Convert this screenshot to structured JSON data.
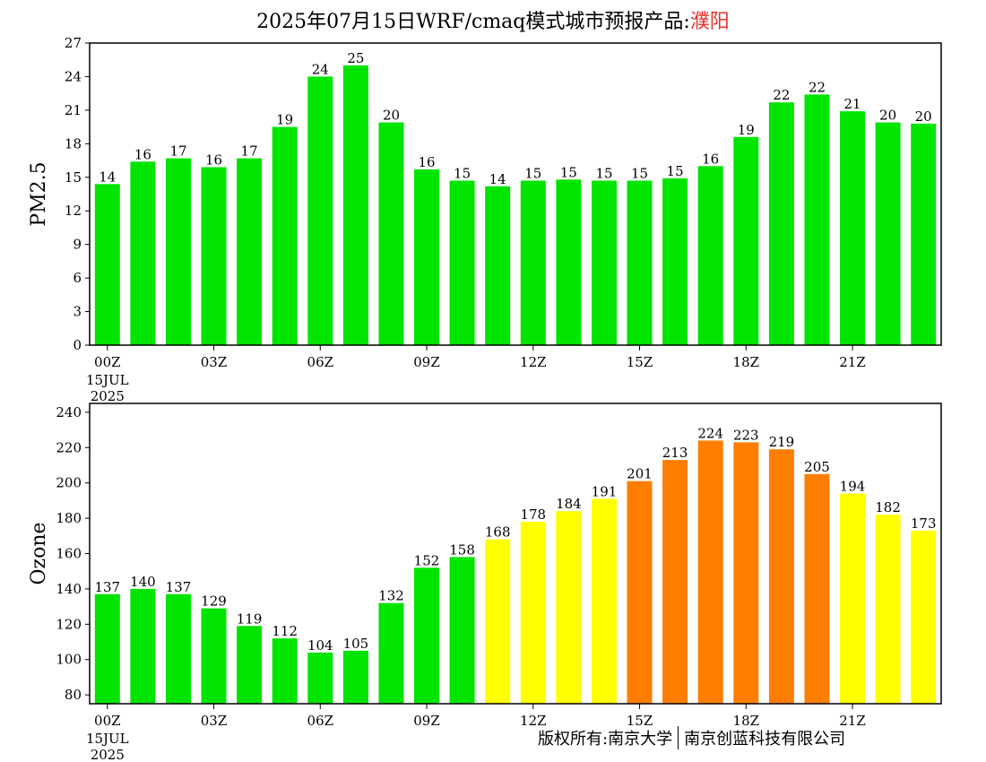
{
  "title": {
    "prefix": "2025年07月15日WRF/cmaq模式城市预报产品:",
    "city": "濮阳"
  },
  "copyright": {
    "owner": "版权所有:南京大学",
    "company": "南京创蓝科技有限公司"
  },
  "colors": {
    "green": "#00e400",
    "yellow": "#ffff00",
    "orange": "#ff7e00"
  },
  "chart_data": [
    {
      "type": "bar",
      "ylabel": "PM2.5",
      "ylim": [
        0,
        27
      ],
      "yticks": [
        0,
        3,
        6,
        9,
        12,
        15,
        18,
        21,
        24,
        27
      ],
      "xtick_labels": [
        "00Z",
        "03Z",
        "06Z",
        "09Z",
        "12Z",
        "15Z",
        "18Z",
        "21Z"
      ],
      "date_label": [
        "15JUL",
        "2025"
      ],
      "hours": [
        0,
        1,
        2,
        3,
        4,
        5,
        6,
        7,
        8,
        9,
        10,
        11,
        12,
        13,
        14,
        15,
        16,
        17,
        18,
        19,
        20,
        21,
        22,
        23
      ],
      "values": [
        14.4,
        16.4,
        16.7,
        15.9,
        16.7,
        19.5,
        24.0,
        25.0,
        19.9,
        15.7,
        14.7,
        14.2,
        14.7,
        14.8,
        14.7,
        14.7,
        14.9,
        16.0,
        18.6,
        21.7,
        22.4,
        20.9,
        19.9,
        19.8
      ],
      "labels": [
        "14",
        "16",
        "17",
        "16",
        "17",
        "19",
        "24",
        "25",
        "20",
        "16",
        "15",
        "14",
        "15",
        "15",
        "15",
        "15",
        "15",
        "16",
        "19",
        "22",
        "22",
        "21",
        "20",
        "20"
      ],
      "colors": [
        "green",
        "green",
        "green",
        "green",
        "green",
        "green",
        "green",
        "green",
        "green",
        "green",
        "green",
        "green",
        "green",
        "green",
        "green",
        "green",
        "green",
        "green",
        "green",
        "green",
        "green",
        "green",
        "green",
        "green"
      ]
    },
    {
      "type": "bar",
      "ylabel": "Ozone",
      "ylim": [
        75,
        245
      ],
      "yticks": [
        80,
        100,
        120,
        140,
        160,
        180,
        200,
        220,
        240
      ],
      "xtick_labels": [
        "00Z",
        "03Z",
        "06Z",
        "09Z",
        "12Z",
        "15Z",
        "18Z",
        "21Z"
      ],
      "date_label": [
        "15JUL",
        "2025"
      ],
      "hours": [
        0,
        1,
        2,
        3,
        4,
        5,
        6,
        7,
        8,
        9,
        10,
        11,
        12,
        13,
        14,
        15,
        16,
        17,
        18,
        19,
        20,
        21,
        22,
        23
      ],
      "values": [
        137,
        140,
        137,
        129,
        119,
        112,
        104,
        105,
        132,
        152,
        158,
        168,
        178,
        184,
        191,
        201,
        213,
        224,
        223,
        219,
        205,
        194,
        182,
        173
      ],
      "labels": [
        "137",
        "140",
        "137",
        "129",
        "119",
        "112",
        "104",
        "105",
        "132",
        "152",
        "158",
        "168",
        "178",
        "184",
        "191",
        "201",
        "213",
        "224",
        "223",
        "219",
        "205",
        "194",
        "182",
        "173"
      ],
      "colors": [
        "green",
        "green",
        "green",
        "green",
        "green",
        "green",
        "green",
        "green",
        "green",
        "green",
        "green",
        "yellow",
        "yellow",
        "yellow",
        "yellow",
        "orange",
        "orange",
        "orange",
        "orange",
        "orange",
        "orange",
        "yellow",
        "yellow",
        "yellow"
      ]
    }
  ]
}
